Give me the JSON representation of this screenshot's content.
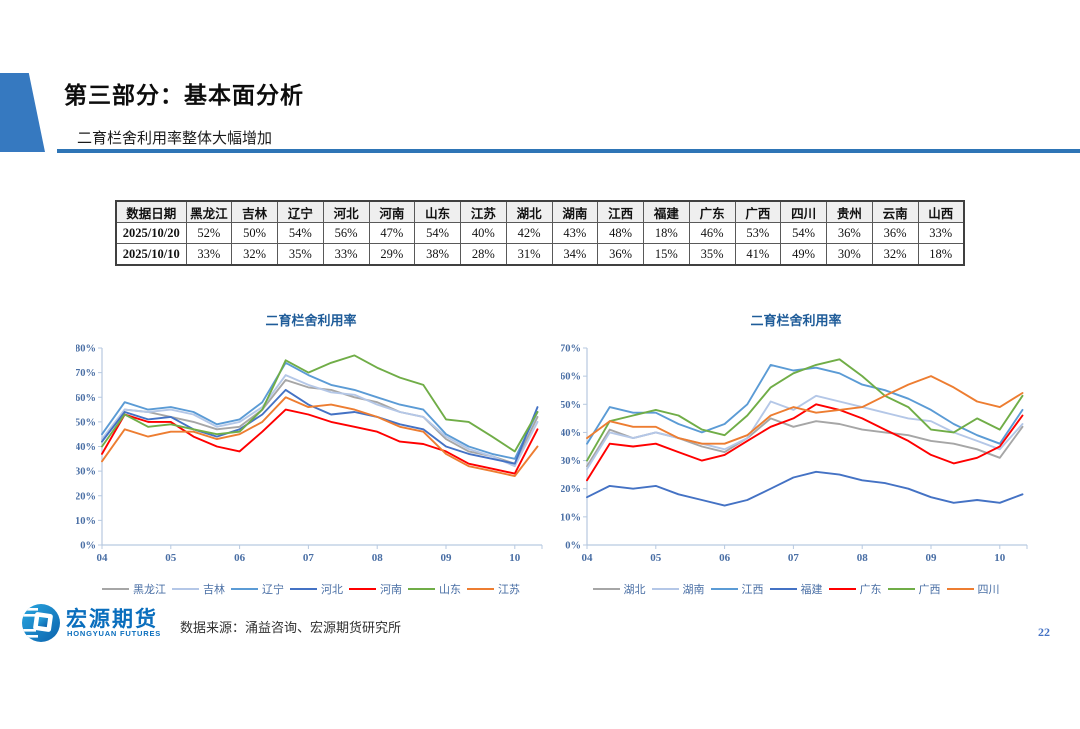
{
  "slide": {
    "section_title": "第三部分：基本面分析",
    "subtitle": "二育栏舍利用率整体大幅增加",
    "page_number": "22",
    "source_text": "数据来源：涌益咨询、宏源期货研究所",
    "logo": {
      "name_cn": "宏源期货",
      "name_en": "HONGYUAN FUTURES"
    }
  },
  "colors": {
    "accent_blue": "#2e75b6",
    "header_shape": "#3679c0",
    "chart_title": "#1f5c99",
    "axis_text": "#4a6fa5",
    "axis_line": "#b7c9e0",
    "page_number": "#4472c4",
    "logo_blue": "#0a6ebd"
  },
  "table": {
    "headers": [
      "数据日期",
      "黑龙江",
      "吉林",
      "辽宁",
      "河北",
      "河南",
      "山东",
      "江苏",
      "湖北",
      "湖南",
      "江西",
      "福建",
      "广东",
      "广西",
      "四川",
      "贵州",
      "云南",
      "山西"
    ],
    "rows": [
      {
        "label": "2025/10/20",
        "values": [
          "52%",
          "50%",
          "54%",
          "56%",
          "47%",
          "54%",
          "40%",
          "42%",
          "43%",
          "48%",
          "18%",
          "46%",
          "53%",
          "54%",
          "36%",
          "36%",
          "33%"
        ]
      },
      {
        "label": "2025/10/10",
        "values": [
          "33%",
          "32%",
          "35%",
          "33%",
          "29%",
          "38%",
          "28%",
          "31%",
          "34%",
          "36%",
          "15%",
          "35%",
          "41%",
          "49%",
          "30%",
          "32%",
          "18%"
        ]
      }
    ]
  },
  "chart_data": [
    {
      "type": "line",
      "title": "二育栏舍利用率",
      "xlabel": "",
      "ylabel": "",
      "ylim": [
        0,
        80
      ],
      "ytick_step": 10,
      "ytick_suffix": "%",
      "grid": false,
      "legend_position": "bottom",
      "x_tick_labels": [
        "04",
        "05",
        "06",
        "07",
        "08",
        "09",
        "10"
      ],
      "x": [
        4,
        4.33,
        4.67,
        5,
        5.33,
        5.67,
        6,
        6.33,
        6.67,
        7,
        7.33,
        7.67,
        8,
        8.33,
        8.67,
        9,
        9.33,
        9.67,
        10,
        10.33
      ],
      "series": [
        {
          "name": "黑龙江",
          "color": "#a6a6a6",
          "values": [
            42,
            55,
            54,
            52,
            50,
            47,
            48,
            55,
            67,
            64,
            63,
            60,
            58,
            54,
            52,
            43,
            38,
            36,
            33,
            52
          ]
        },
        {
          "name": "吉林",
          "color": "#b4c7e7",
          "values": [
            43,
            55,
            54,
            55,
            53,
            48,
            50,
            56,
            69,
            65,
            62,
            61,
            57,
            54,
            52,
            44,
            39,
            36,
            32,
            50
          ]
        },
        {
          "name": "辽宁",
          "color": "#5b9bd5",
          "values": [
            45,
            58,
            55,
            56,
            54,
            49,
            51,
            58,
            74,
            69,
            65,
            63,
            60,
            57,
            55,
            45,
            40,
            37,
            35,
            54
          ]
        },
        {
          "name": "河北",
          "color": "#4472c4",
          "values": [
            42,
            54,
            51,
            52,
            47,
            44,
            47,
            53,
            63,
            57,
            53,
            54,
            52,
            49,
            47,
            40,
            37,
            35,
            33,
            56
          ]
        },
        {
          "name": "河南",
          "color": "#ff0000",
          "values": [
            37,
            53,
            50,
            50,
            44,
            40,
            38,
            46,
            55,
            53,
            50,
            48,
            46,
            42,
            41,
            38,
            33,
            31,
            29,
            47
          ]
        },
        {
          "name": "山东",
          "color": "#70ad47",
          "values": [
            40,
            53,
            48,
            49,
            47,
            45,
            46,
            55,
            75,
            70,
            74,
            77,
            72,
            68,
            65,
            51,
            50,
            44,
            38,
            54
          ]
        },
        {
          "name": "江苏",
          "color": "#ed7d31",
          "values": [
            34,
            47,
            44,
            46,
            46,
            43,
            45,
            50,
            60,
            56,
            57,
            55,
            52,
            48,
            46,
            37,
            32,
            30,
            28,
            40
          ]
        }
      ]
    },
    {
      "type": "line",
      "title": "二育栏舍利用率",
      "xlabel": "",
      "ylabel": "",
      "ylim": [
        0,
        70
      ],
      "ytick_step": 10,
      "ytick_suffix": "%",
      "grid": false,
      "legend_position": "bottom",
      "x_tick_labels": [
        "04",
        "05",
        "06",
        "07",
        "08",
        "09",
        "10"
      ],
      "x": [
        4,
        4.33,
        4.67,
        5,
        5.33,
        5.67,
        6,
        6.33,
        6.67,
        7,
        7.33,
        7.67,
        8,
        8.33,
        8.67,
        9,
        9.33,
        9.67,
        10,
        10.33
      ],
      "series": [
        {
          "name": "湖北",
          "color": "#a6a6a6",
          "values": [
            28,
            41,
            38,
            40,
            38,
            35,
            33,
            38,
            45,
            42,
            44,
            43,
            41,
            40,
            39,
            37,
            36,
            34,
            31,
            42
          ]
        },
        {
          "name": "湖南",
          "color": "#b4c7e7",
          "values": [
            27,
            40,
            38,
            40,
            38,
            36,
            34,
            38,
            51,
            48,
            53,
            51,
            49,
            47,
            45,
            44,
            40,
            37,
            34,
            43
          ]
        },
        {
          "name": "江西",
          "color": "#5b9bd5",
          "values": [
            36,
            49,
            47,
            47,
            43,
            40,
            43,
            50,
            64,
            62,
            63,
            61,
            57,
            55,
            52,
            48,
            43,
            39,
            36,
            48
          ]
        },
        {
          "name": "福建",
          "color": "#4472c4",
          "values": [
            17,
            21,
            20,
            21,
            18,
            16,
            14,
            16,
            20,
            24,
            26,
            25,
            23,
            22,
            20,
            17,
            15,
            16,
            15,
            18
          ]
        },
        {
          "name": "广东",
          "color": "#ff0000",
          "values": [
            23,
            36,
            35,
            36,
            33,
            30,
            32,
            37,
            42,
            45,
            50,
            48,
            45,
            41,
            37,
            32,
            29,
            31,
            35,
            46
          ]
        },
        {
          "name": "广西",
          "color": "#70ad47",
          "values": [
            30,
            44,
            46,
            48,
            46,
            41,
            39,
            46,
            56,
            61,
            64,
            66,
            60,
            53,
            49,
            41,
            40,
            45,
            41,
            53
          ]
        },
        {
          "name": "四川",
          "color": "#ed7d31",
          "values": [
            38,
            44,
            42,
            42,
            38,
            36,
            36,
            39,
            46,
            49,
            47,
            48,
            49,
            53,
            57,
            60,
            56,
            51,
            49,
            54
          ]
        }
      ]
    }
  ]
}
